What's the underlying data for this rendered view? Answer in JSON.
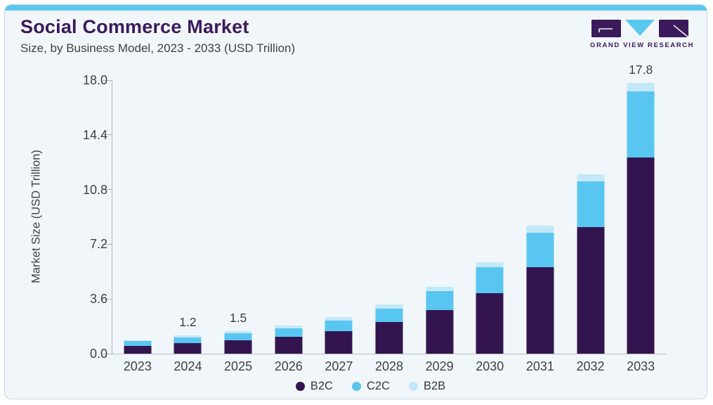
{
  "header": {
    "title": "Social Commerce Market",
    "subtitle": "Size, by Business Model, 2023 - 2033 (USD Trillion)",
    "logo_text": "GRAND VIEW RESEARCH"
  },
  "colors": {
    "accent_strip": "#5ac7f0",
    "title_purple": "#3a1a5b",
    "card_bg": "#f1f6fa",
    "axis_line": "#aeb6bf",
    "b2c": "#32154e",
    "c2c": "#59c6f2",
    "b2b": "#c3e8fa"
  },
  "chart_data": {
    "type": "bar",
    "stacked": true,
    "title": "Social Commerce Market Size, by Business Model, 2023 - 2033 (USD Trillion)",
    "xlabel": "",
    "ylabel": "Market Size (USD Trillion)",
    "ylim": [
      0,
      18
    ],
    "yticks": [
      0.0,
      3.6,
      7.2,
      10.8,
      14.4,
      18.0
    ],
    "ytick_labels": [
      "0.0",
      "3.6",
      "7.2",
      "10.8",
      "14.4",
      "18.0"
    ],
    "grid": false,
    "legend_position": "bottom",
    "categories": [
      "2023",
      "2024",
      "2025",
      "2026",
      "2027",
      "2028",
      "2029",
      "2030",
      "2031",
      "2032",
      "2033"
    ],
    "series": [
      {
        "name": "B2C",
        "color": "#32154e",
        "values": [
          0.5,
          0.68,
          0.87,
          1.1,
          1.5,
          2.1,
          2.85,
          4.0,
          5.7,
          8.35,
          12.9
        ]
      },
      {
        "name": "C2C",
        "color": "#59c6f2",
        "values": [
          0.33,
          0.4,
          0.48,
          0.57,
          0.68,
          0.85,
          1.25,
          1.7,
          2.25,
          3.0,
          4.35
        ]
      },
      {
        "name": "B2B",
        "color": "#c3e8fa",
        "values": [
          0.07,
          0.12,
          0.15,
          0.18,
          0.25,
          0.27,
          0.3,
          0.3,
          0.45,
          0.45,
          0.55
        ]
      }
    ],
    "totals": [
      0.9,
      1.2,
      1.5,
      1.85,
      2.43,
      3.22,
      4.4,
      6.0,
      8.4,
      11.8,
      17.8
    ],
    "bar_labels": [
      "",
      "1.2",
      "1.5",
      "",
      "",
      "",
      "",
      "",
      "",
      "",
      "17.8"
    ]
  }
}
